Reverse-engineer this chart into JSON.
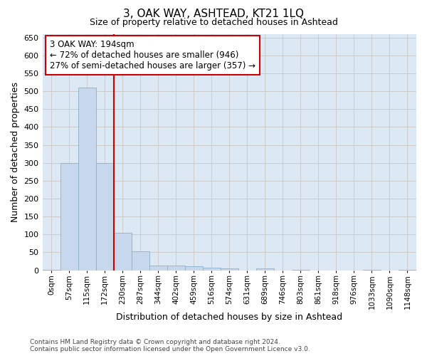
{
  "title1": "3, OAK WAY, ASHTEAD, KT21 1LQ",
  "title2": "Size of property relative to detached houses in Ashtead",
  "xlabel": "Distribution of detached houses by size in Ashtead",
  "ylabel": "Number of detached properties",
  "annotation_line1": "3 OAK WAY: 194sqm",
  "annotation_line2": "← 72% of detached houses are smaller (946)",
  "annotation_line3": "27% of semi-detached houses are larger (357) →",
  "bar_labels": [
    "0sqm",
    "57sqm",
    "115sqm",
    "172sqm",
    "230sqm",
    "287sqm",
    "344sqm",
    "402sqm",
    "459sqm",
    "516sqm",
    "574sqm",
    "631sqm",
    "689sqm",
    "746sqm",
    "803sqm",
    "861sqm",
    "918sqm",
    "976sqm",
    "1033sqm",
    "1090sqm",
    "1148sqm"
  ],
  "bar_values": [
    2,
    300,
    510,
    300,
    105,
    53,
    13,
    13,
    12,
    8,
    5,
    0,
    5,
    0,
    2,
    0,
    0,
    0,
    2,
    0,
    2
  ],
  "bar_color": "#c8d8ec",
  "bar_edge_color": "#8ab0cc",
  "vline_color": "#cc0000",
  "vline_x": 3.5,
  "ylim": [
    0,
    660
  ],
  "yticks": [
    0,
    50,
    100,
    150,
    200,
    250,
    300,
    350,
    400,
    450,
    500,
    550,
    600,
    650
  ],
  "annotation_box_color": "#ffffff",
  "annotation_box_edge": "#cc0000",
  "footer_line1": "Contains HM Land Registry data © Crown copyright and database right 2024.",
  "footer_line2": "Contains public sector information licensed under the Open Government Licence v3.0.",
  "grid_color": "#cccccc",
  "bg_color": "#dce8f4",
  "fig_bg_color": "#ffffff"
}
